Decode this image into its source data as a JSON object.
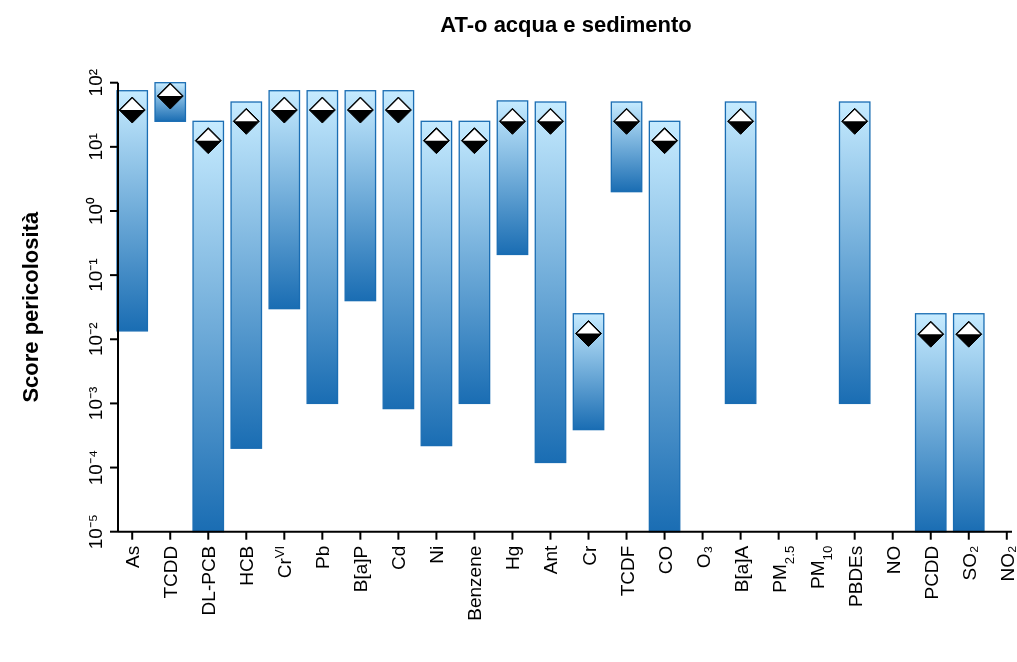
{
  "chart_data": {
    "type": "bar",
    "title": "AT-o  acqua e sedimento",
    "ylabel": "Score pericolosità",
    "categories": [
      "As",
      "TCDD",
      "DL-PCB",
      "HCB",
      "Cr$^{VI}$",
      "Pb",
      "B[a]P",
      "Cd",
      "Ni",
      "Benzene",
      "Hg",
      "Ant",
      "Cr",
      "TCDF",
      "CO",
      "O₃",
      "B[a]A",
      "PM$_{2.5}$",
      "PM$_{10}$",
      "PBDEs",
      "NO",
      "PCDD",
      "SO₂",
      "NO₂"
    ],
    "series": [
      {
        "type": "bar",
        "color": "#1a6db3",
        "base": [
          0.0135,
          25,
          1e-05,
          0.0002,
          0.03,
          0.001,
          0.04,
          0.00083,
          0.00022,
          0.001,
          0.21,
          0.00012,
          0.00039,
          2,
          1e-05,
          null,
          0.001,
          null,
          null,
          0.001,
          null,
          1e-05,
          1e-05,
          null
        ],
        "values": [
          74.9865,
          75,
          24.99999,
          49.9998,
          74.97,
          74.999,
          74.96,
          74.99917,
          24.99978,
          24.999,
          51.79,
          49.99988,
          0.02461,
          48,
          24.99999,
          null,
          49.999,
          null,
          null,
          49.999,
          null,
          0.02499,
          0.02499,
          null
        ]
      },
      {
        "type": "scatter",
        "color": "#000000",
        "x": [
          "As",
          "TCDD",
          "DL-PCB",
          "HCB",
          "Cr$^{VI}$",
          "Pb",
          "B[a]P",
          "Cd",
          "Ni",
          "Benzene",
          "Hg",
          "Ant",
          "Cr",
          "TCDF",
          "CO",
          "O₃",
          "B[a]A",
          "PM$_{2.5}$",
          "PM$_{10}$",
          "PBDEs",
          "NO",
          "PCDD",
          "SO₂",
          "NO₂"
        ],
        "values": [
          37.5,
          62,
          12.5,
          25,
          37.5,
          37.5,
          37.5,
          37.5,
          12.5,
          12.5,
          25,
          25,
          0.0123,
          25,
          12.5,
          null,
          25,
          null,
          null,
          25,
          null,
          0.012,
          0.012,
          null
        ]
      }
    ],
    "log": true,
    "marker": "diamond",
    "ylim": [
      1e-05,
      100
    ],
    "yticks": [
      {
        "value": 1e-05,
        "label": "10⁻⁵"
      },
      {
        "value": 0.0001,
        "label": "10⁻⁴"
      },
      {
        "value": 0.001,
        "label": "10⁻³"
      },
      {
        "value": 0.01,
        "label": "10⁻²"
      },
      {
        "value": 0.1,
        "label": "10⁻¹"
      },
      {
        "value": 1,
        "label": "10⁰"
      },
      {
        "value": 10,
        "label": "10¹"
      },
      {
        "value": 100,
        "label": "10²"
      }
    ],
    "grid": false
  }
}
